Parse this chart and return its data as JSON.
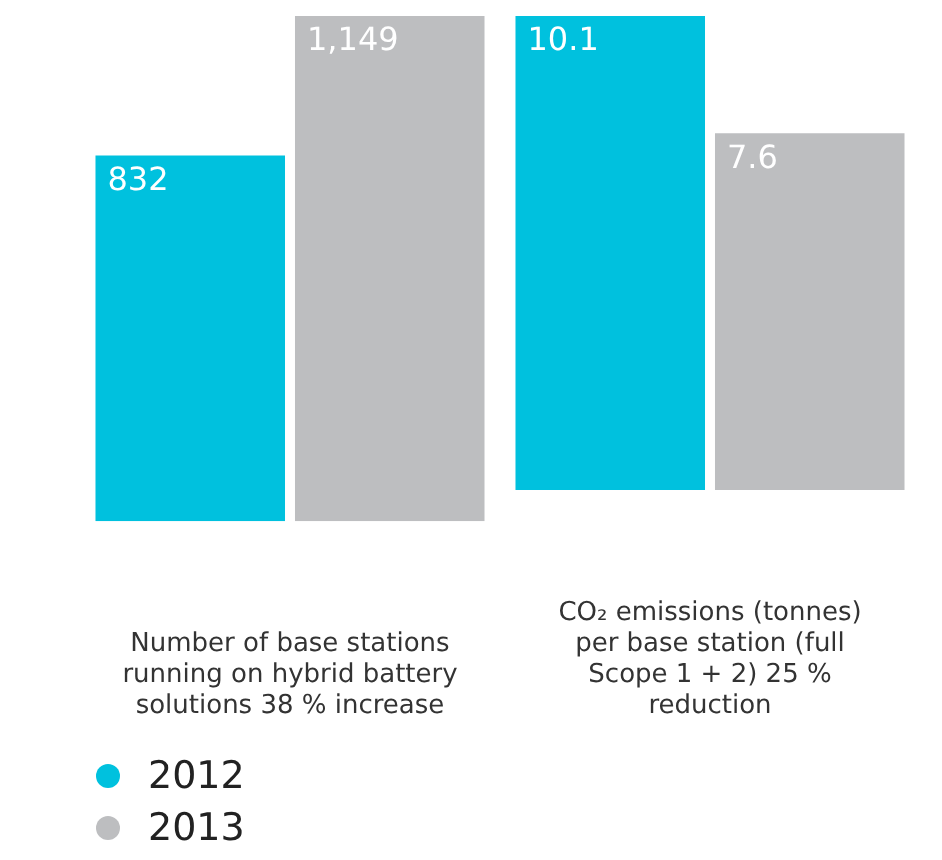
{
  "chart_data": [
    {
      "type": "bar",
      "categories": [
        null
      ],
      "xlabel": "Number of base stations running on hybrid battery solutions 38 % increase",
      "series": [
        {
          "name": "2012",
          "color": "#00c1de",
          "values": [
            832
          ],
          "value_labels": [
            "832"
          ]
        },
        {
          "name": "2013",
          "color": "#bdbec0",
          "values": [
            1149
          ],
          "value_labels": [
            "1,149"
          ]
        }
      ],
      "legend": "bottom left",
      "grid": false
    },
    {
      "type": "bar",
      "categories": [
        null
      ],
      "xlabel": "CO₂ emissions (tonnes) per base station (full Scope 1 + 2) 25 % reduction",
      "series": [
        {
          "color": "#00c1de",
          "values": [
            10.1
          ]
        },
        {
          "color": "#bdbec0",
          "values": [
            7.6
          ]
        }
      ],
      "data_labels": true,
      "grid": false
    }
  ]
}
